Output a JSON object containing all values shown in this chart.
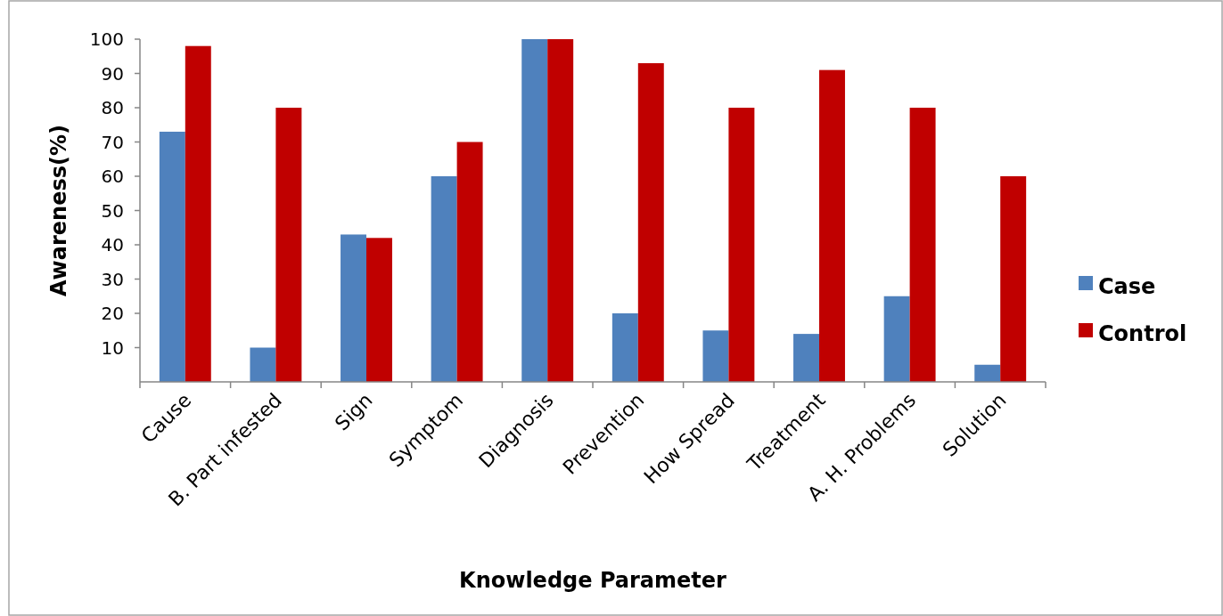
{
  "chart_data": {
    "type": "bar",
    "xlabel": "Knowledge Parameter",
    "ylabel": "Awareness(%)",
    "categories": [
      "Cause",
      "B. Part infested",
      "Sign",
      "Symptom",
      "Diagnosis",
      "Prevention",
      "How Spread",
      "Treatment",
      "A. H. Problems",
      "Solution"
    ],
    "series": [
      {
        "name": "Case",
        "color": "#4f81bd",
        "values": [
          73,
          10,
          43,
          60,
          100,
          20,
          15,
          14,
          25,
          5
        ]
      },
      {
        "name": "Control",
        "color": "#c00000",
        "values": [
          98,
          80,
          42,
          70,
          100,
          93,
          80,
          91,
          80,
          60
        ]
      }
    ],
    "ylim": [
      0,
      100
    ],
    "yticks": [
      10,
      20,
      30,
      40,
      50,
      60,
      70,
      80,
      90,
      100
    ],
    "grid": false,
    "legend": "right"
  }
}
